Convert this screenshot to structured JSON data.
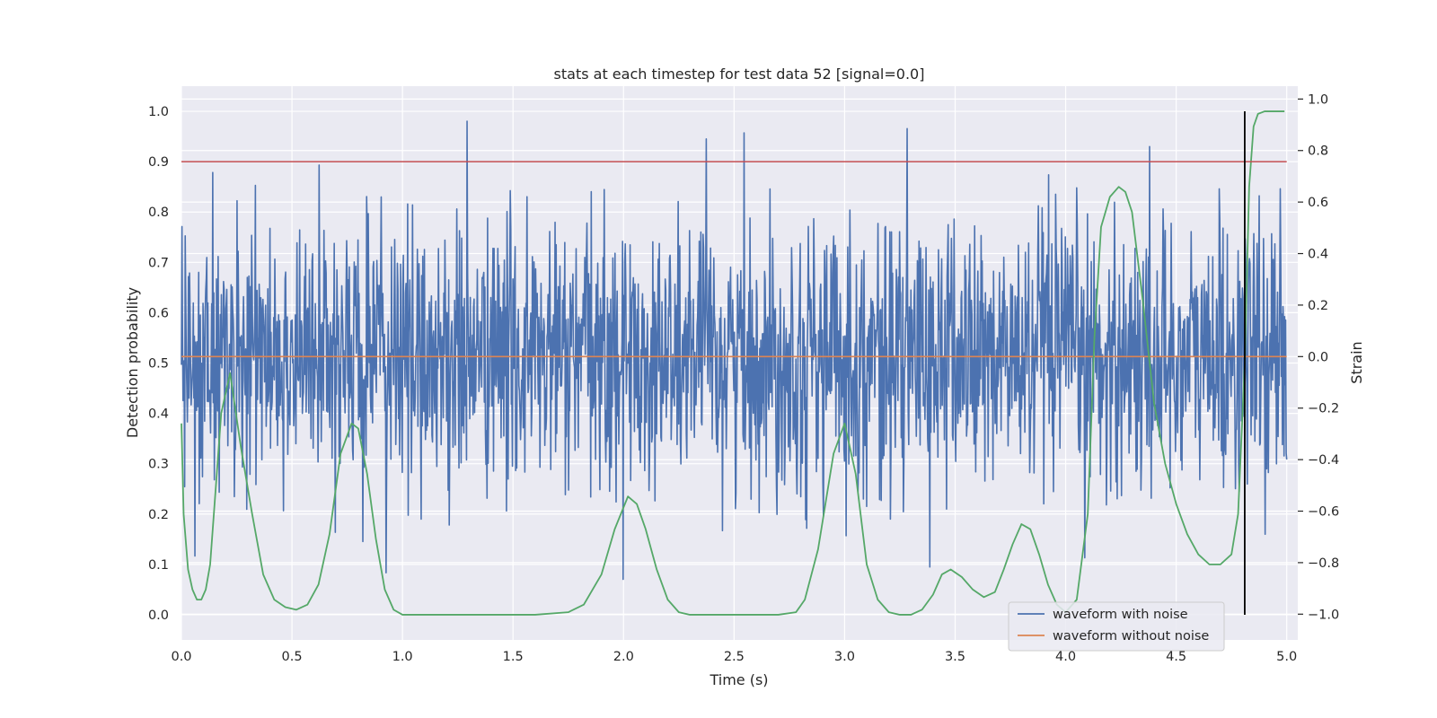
{
  "chart_data": {
    "type": "line",
    "title": "stats at each timestep for test data 52 [signal=0.0]",
    "xlabel": "Time (s)",
    "ylabel": "Detection probability",
    "ylabel_right": "Strain",
    "xlim": [
      0.0,
      5.05
    ],
    "ylim": [
      -0.05,
      1.05
    ],
    "ylim_right": [
      -1.1,
      1.05
    ],
    "x_ticks": [
      "0.0",
      "0.5",
      "1.0",
      "1.5",
      "2.0",
      "2.5",
      "3.0",
      "3.5",
      "4.0",
      "4.5",
      "5.0"
    ],
    "y_ticks": [
      "0.0",
      "0.1",
      "0.2",
      "0.3",
      "0.4",
      "0.5",
      "0.6",
      "0.7",
      "0.8",
      "0.9",
      "1.0"
    ],
    "y_ticks_right": [
      "−1.0",
      "−0.8",
      "−0.6",
      "−0.4",
      "−0.2",
      "0.0",
      "0.2",
      "0.4",
      "0.6",
      "0.8",
      "1.0"
    ],
    "grid": true,
    "legend_position": "lower-right",
    "colors": {
      "noise": "#4c72b0",
      "clean": "#dd8452",
      "prob": "#55a868",
      "threshold": "#c44e52",
      "marker": "#000000",
      "background": "#eaeaf2"
    },
    "series": [
      {
        "name": "waveform with noise",
        "axis": "right",
        "description_range": [
          -1.0,
          1.0
        ],
        "approx_amplitude_std": 0.26
      },
      {
        "name": "waveform without noise",
        "axis": "right",
        "x": [
          0.0,
          5.0
        ],
        "y": [
          0.0,
          0.0
        ]
      },
      {
        "axis": "left",
        "x": [
          0.0,
          0.01,
          0.03,
          0.05,
          0.07,
          0.09,
          0.11,
          0.13,
          0.15,
          0.18,
          0.22,
          0.27,
          0.32,
          0.37,
          0.42,
          0.47,
          0.52,
          0.57,
          0.62,
          0.67,
          0.72,
          0.77,
          0.8,
          0.84,
          0.88,
          0.92,
          0.96,
          1.0,
          1.05,
          1.2,
          1.4,
          1.6,
          1.75,
          1.82,
          1.9,
          1.96,
          2.02,
          2.06,
          2.1,
          2.15,
          2.2,
          2.25,
          2.3,
          2.5,
          2.7,
          2.78,
          2.82,
          2.88,
          2.95,
          3.0,
          3.05,
          3.1,
          3.15,
          3.2,
          3.25,
          3.3,
          3.35,
          3.4,
          3.44,
          3.48,
          3.53,
          3.58,
          3.63,
          3.68,
          3.72,
          3.76,
          3.8,
          3.84,
          3.88,
          3.92,
          3.96,
          4.0,
          4.05,
          4.1,
          4.13,
          4.16,
          4.2,
          4.24,
          4.27,
          4.3,
          4.35,
          4.4,
          4.45,
          4.5,
          4.55,
          4.6,
          4.65,
          4.7,
          4.75,
          4.78,
          4.81,
          4.83,
          4.85,
          4.87,
          4.9,
          4.93,
          4.96,
          4.99
        ],
        "y": [
          0.38,
          0.2,
          0.09,
          0.05,
          0.03,
          0.03,
          0.05,
          0.1,
          0.22,
          0.4,
          0.48,
          0.33,
          0.2,
          0.08,
          0.03,
          0.015,
          0.01,
          0.02,
          0.06,
          0.16,
          0.32,
          0.38,
          0.37,
          0.28,
          0.15,
          0.05,
          0.01,
          0.0,
          0.0,
          0.0,
          0.0,
          0.0,
          0.005,
          0.02,
          0.08,
          0.17,
          0.235,
          0.22,
          0.17,
          0.09,
          0.03,
          0.005,
          0.0,
          0.0,
          0.0,
          0.005,
          0.03,
          0.13,
          0.32,
          0.38,
          0.28,
          0.1,
          0.03,
          0.005,
          0.0,
          0.0,
          0.01,
          0.04,
          0.08,
          0.09,
          0.075,
          0.05,
          0.035,
          0.045,
          0.09,
          0.14,
          0.18,
          0.17,
          0.12,
          0.06,
          0.02,
          0.005,
          0.03,
          0.2,
          0.55,
          0.77,
          0.83,
          0.85,
          0.84,
          0.8,
          0.62,
          0.42,
          0.3,
          0.22,
          0.16,
          0.12,
          0.1,
          0.1,
          0.12,
          0.2,
          0.5,
          0.85,
          0.97,
          0.995,
          1.0,
          1.0,
          1.0,
          1.0
        ]
      },
      {
        "axis": "left",
        "x": [
          0.0,
          5.0
        ],
        "y": [
          0.9,
          0.9
        ]
      },
      {
        "axis": "left",
        "x": [
          4.81,
          4.81
        ],
        "y": [
          0.0,
          1.0
        ]
      }
    ]
  }
}
